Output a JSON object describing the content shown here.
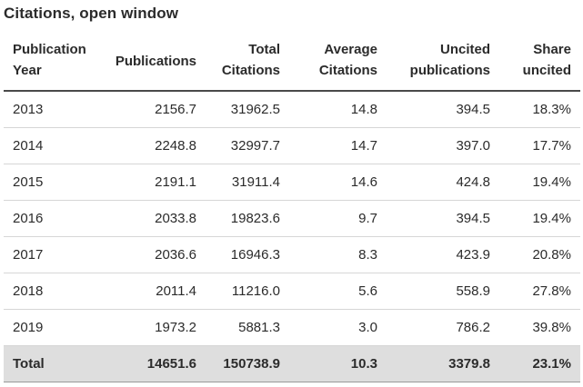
{
  "title": "Citations, open window",
  "columns": [
    {
      "line1": "Publication",
      "line2": "Year"
    },
    {
      "line1": "",
      "line2": "Publications"
    },
    {
      "line1": "Total",
      "line2": "Citations"
    },
    {
      "line1": "Average",
      "line2": "Citations"
    },
    {
      "line1": "Uncited",
      "line2": "publications"
    },
    {
      "line1": "Share",
      "line2": "uncited"
    }
  ],
  "rows": [
    [
      "2013",
      "2156.7",
      "31962.5",
      "14.8",
      "394.5",
      "18.3%"
    ],
    [
      "2014",
      "2248.8",
      "32997.7",
      "14.7",
      "397.0",
      "17.7%"
    ],
    [
      "2015",
      "2191.1",
      "31911.4",
      "14.6",
      "424.8",
      "19.4%"
    ],
    [
      "2016",
      "2033.8",
      "19823.6",
      "9.7",
      "394.5",
      "19.4%"
    ],
    [
      "2017",
      "2036.6",
      "16946.3",
      "8.3",
      "423.9",
      "20.8%"
    ],
    [
      "2018",
      "2011.4",
      "11216.0",
      "5.6",
      "558.9",
      "27.8%"
    ],
    [
      "2019",
      "1973.2",
      "5881.3",
      "3.0",
      "786.2",
      "39.8%"
    ]
  ],
  "total": [
    "Total",
    "14651.6",
    "150738.9",
    "10.3",
    "3379.8",
    "23.1%"
  ]
}
